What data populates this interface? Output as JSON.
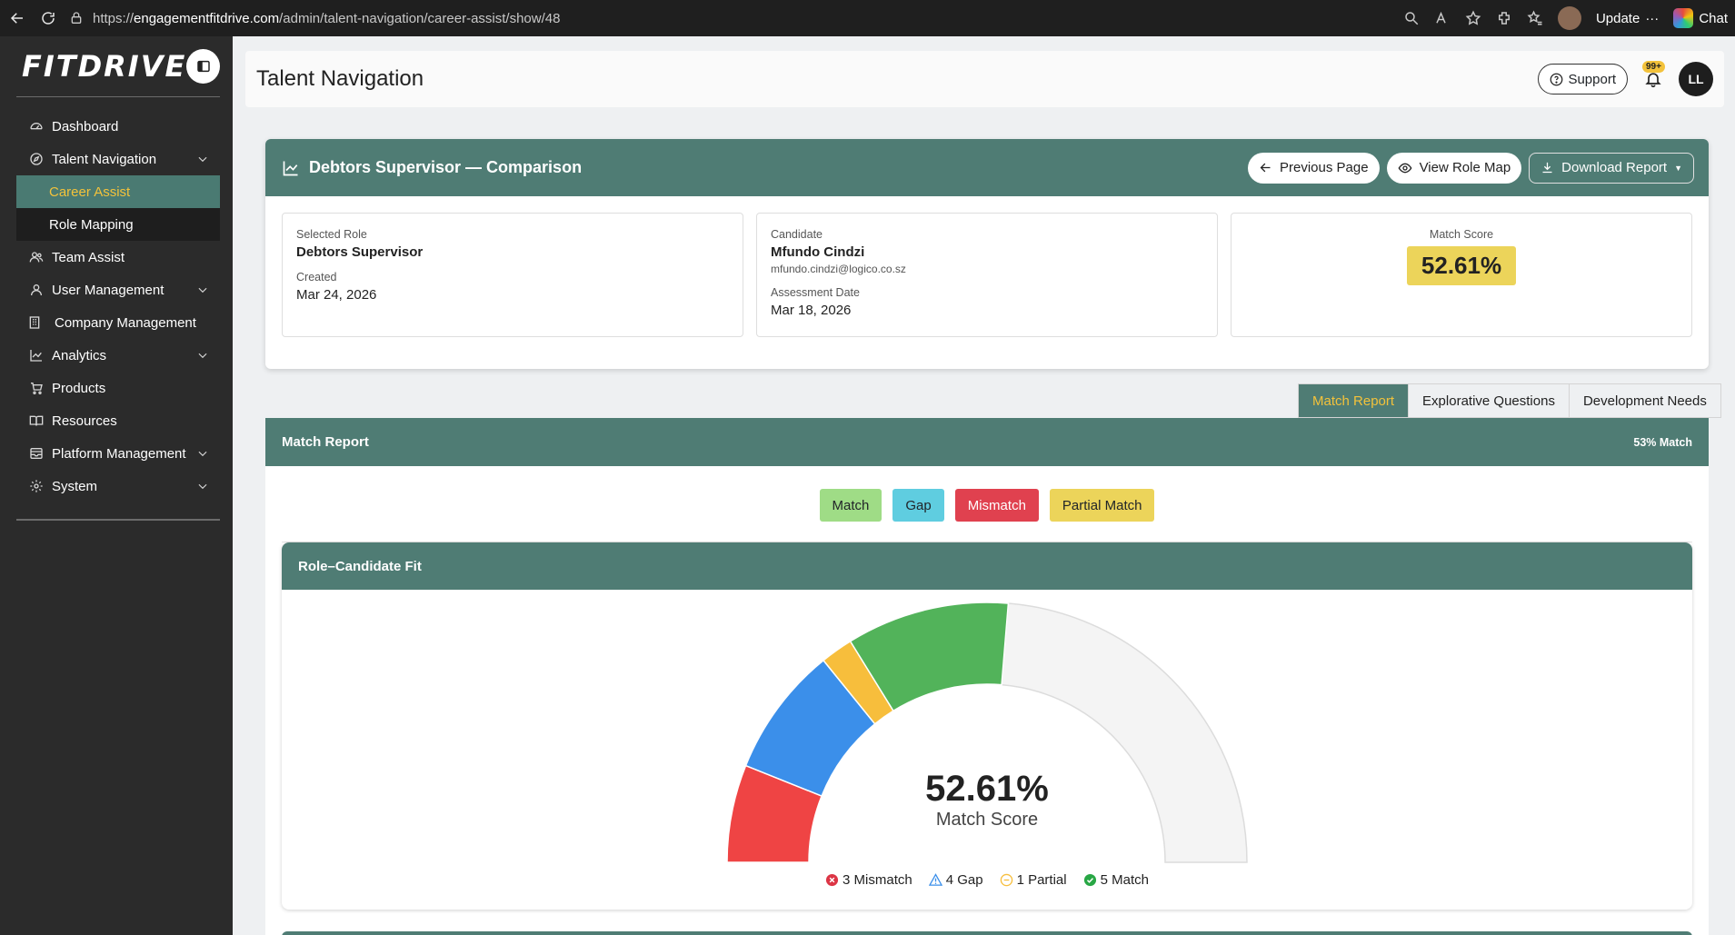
{
  "browser": {
    "url_prefix": "https://",
    "url_host": "engagementfitdrive.com",
    "url_path": "/admin/talent-navigation/career-assist/show/48",
    "update_label": "Update",
    "chat_label": "Chat"
  },
  "sidebar": {
    "logo": "FITDRIVE",
    "items": [
      {
        "label": "Dashboard",
        "icon": "dashboard-icon"
      },
      {
        "label": "Talent Navigation",
        "icon": "compass-icon",
        "expandable": true
      },
      {
        "label": "Career Assist",
        "sub": true,
        "active": true
      },
      {
        "label": "Role Mapping",
        "sub": true
      },
      {
        "label": "Team Assist",
        "icon": "users-icon"
      },
      {
        "label": "User Management",
        "icon": "user-icon",
        "expandable": true
      },
      {
        "label": "Company Management",
        "icon": "building-icon"
      },
      {
        "label": "Analytics",
        "icon": "chart-line-icon",
        "expandable": true
      },
      {
        "label": "Products",
        "icon": "cart-icon"
      },
      {
        "label": "Resources",
        "icon": "book-icon"
      },
      {
        "label": "Platform Management",
        "icon": "tray-icon",
        "expandable": true
      },
      {
        "label": "System",
        "icon": "gear-icon",
        "expandable": true
      }
    ]
  },
  "header": {
    "title": "Talent Navigation",
    "support_label": "Support",
    "notification_badge": "99+",
    "user_initials": "LL"
  },
  "comparison": {
    "title": "Debtors Supervisor — Comparison",
    "prev_label": "Previous Page",
    "rolemap_label": "View Role Map",
    "download_label": "Download Report",
    "selected_role_label": "Selected Role",
    "selected_role": "Debtors Supervisor",
    "created_label": "Created",
    "created": "Mar 24, 2026",
    "candidate_label": "Candidate",
    "candidate_name": "Mfundo Cindzi",
    "candidate_email": "mfundo.cindzi@logico.co.sz",
    "assessment_label": "Assessment Date",
    "assessment_date": "Mar 18, 2026",
    "match_score_label": "Match Score",
    "match_score": "52.61%"
  },
  "tabs": [
    "Match Report",
    "Explorative Questions",
    "Development Needs"
  ],
  "match_report": {
    "title": "Match Report",
    "percent_label": "53% Match",
    "legend": [
      {
        "label": "Match",
        "color": "#9fdc86"
      },
      {
        "label": "Gap",
        "color": "#5fcde0"
      },
      {
        "label": "Mismatch",
        "color": "#e0414f"
      },
      {
        "label": "Partial Match",
        "color": "#ecd45a"
      }
    ]
  },
  "fit": {
    "title": "Role–Candidate Fit",
    "score": "52.61%",
    "score_label": "Match Score",
    "colors": {
      "mismatch": "#ef4444",
      "gap": "#3b8fea",
      "partial": "#f7be3c",
      "match": "#52b35a",
      "empty": "#f4f4f4"
    },
    "legend": [
      {
        "label": "3 Mismatch",
        "icon": "x-circle-icon",
        "color": "#dc3545"
      },
      {
        "label": "4 Gap",
        "icon": "warning-triangle-icon",
        "color": "#3b8fea"
      },
      {
        "label": "1 Partial",
        "icon": "partial-circle-icon",
        "color": "#f7be3c"
      },
      {
        "label": "5 Match",
        "icon": "check-circle-icon",
        "color": "#28a745"
      }
    ]
  },
  "chart_data": {
    "type": "gauge",
    "value": 52.61,
    "segments": [
      {
        "name": "Mismatch",
        "count": 3
      },
      {
        "name": "Gap",
        "count": 4
      },
      {
        "name": "Partial",
        "count": 1
      },
      {
        "name": "Match",
        "count": 5
      }
    ]
  }
}
